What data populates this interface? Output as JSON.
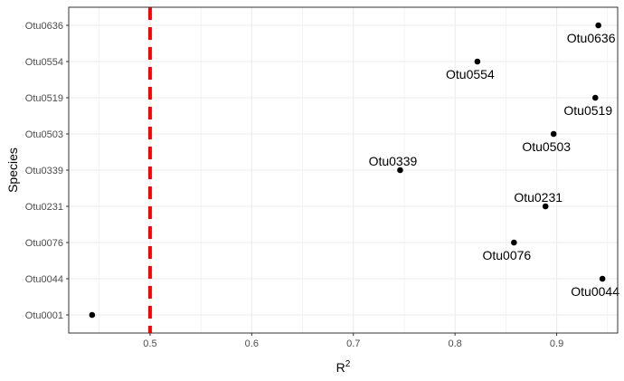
{
  "chart_data": {
    "type": "scatter",
    "title": "",
    "xlabel_base": "R",
    "xlabel_sup": "2",
    "ylabel": "Species",
    "xlim": [
      0.42,
      0.96
    ],
    "x_ticks": [
      0.5,
      0.6,
      0.7,
      0.8,
      0.9
    ],
    "x_tick_labels": [
      "0.5",
      "0.6",
      "0.7",
      "0.8",
      "0.9"
    ],
    "categories": [
      "Otu0001",
      "Otu0044",
      "Otu0076",
      "Otu0231",
      "Otu0339",
      "Otu0503",
      "Otu0519",
      "Otu0554",
      "Otu0636"
    ],
    "points": [
      {
        "species": "Otu0001",
        "x": 0.443,
        "label": ""
      },
      {
        "species": "Otu0044",
        "x": 0.945,
        "label": "Otu0044"
      },
      {
        "species": "Otu0076",
        "x": 0.858,
        "label": "Otu0076"
      },
      {
        "species": "Otu0231",
        "x": 0.889,
        "label": "Otu0231"
      },
      {
        "species": "Otu0339",
        "x": 0.746,
        "label": "Otu0339"
      },
      {
        "species": "Otu0503",
        "x": 0.897,
        "label": "Otu0503"
      },
      {
        "species": "Otu0519",
        "x": 0.938,
        "label": "Otu0519"
      },
      {
        "species": "Otu0554",
        "x": 0.822,
        "label": "Otu0554"
      },
      {
        "species": "Otu0636",
        "x": 0.941,
        "label": "Otu0636"
      }
    ],
    "reference_line": {
      "x": 0.5,
      "style": "dashed",
      "color": "#ff0000"
    },
    "grid": true,
    "legend": "none",
    "point_color": "#000000",
    "panel_background": "#ffffff",
    "grid_color": "#ebebeb"
  }
}
